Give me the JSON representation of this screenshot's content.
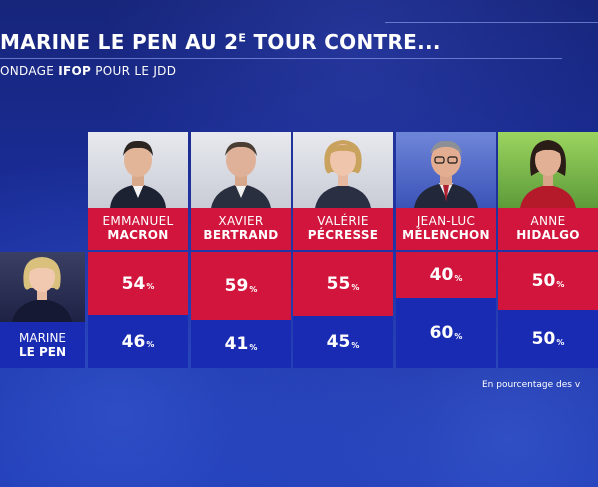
{
  "title": {
    "main": "MARINE LE PEN AU 2",
    "sup": "E",
    "rest": " TOUR CONTRE..."
  },
  "subtitle": {
    "part1": "ONDAGE ",
    "brand": "IFOP",
    "part2": " POUR LE JDD"
  },
  "footnote": "En pourcentage des v",
  "opponent": {
    "first": "MARINE",
    "last": "LE PEN"
  },
  "percent_sign": "%",
  "colors": {
    "lepen": "#1a2bb3",
    "candidate": "#d1153c"
  },
  "chart_data": {
    "type": "bar",
    "stacked": true,
    "ylim": [
      0,
      100
    ],
    "categories": [
      "EMMANUEL MACRON",
      "XAVIER BERTRAND",
      "VALÉRIE PÉCRESSE",
      "JEAN-LUC MÉLENCHON",
      "ANNE HIDALGO"
    ],
    "series": [
      {
        "name": "",
        "values": [
          54,
          59,
          55,
          40,
          50
        ]
      },
      {
        "name": "MARINE LE PEN",
        "values": [
          46,
          41,
          45,
          60,
          50
        ]
      }
    ]
  },
  "candidates": [
    {
      "first": "EMMANUEL",
      "last": "MACRON",
      "top_label": "54",
      "bottom_label": "46",
      "photo_icon": "macron-portrait-icon"
    },
    {
      "first": "XAVIER",
      "last": "BERTRAND",
      "top_label": "59",
      "bottom_label": "41",
      "photo_icon": "bertrand-portrait-icon"
    },
    {
      "first": "VALÉRIE",
      "last": "PÉCRESSE",
      "top_label": "55",
      "bottom_label": "45",
      "photo_icon": "pecresse-portrait-icon"
    },
    {
      "first": "JEAN-LUC",
      "last": "MÉLENCHON",
      "top_label": "40",
      "bottom_label": "60",
      "photo_icon": "melenchon-portrait-icon"
    },
    {
      "first": "ANNE",
      "last": "HIDALGO",
      "top_label": "50",
      "bottom_label": "50",
      "photo_icon": "hidalgo-portrait-icon"
    }
  ]
}
